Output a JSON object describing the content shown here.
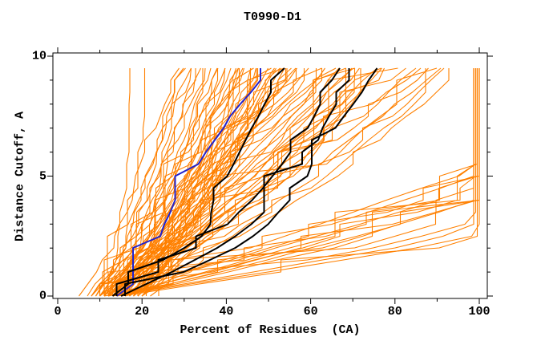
{
  "chart_data": {
    "type": "line",
    "title": "T0990-D1",
    "xlabel": "Percent of Residues  (CA)",
    "ylabel": "Distance Cutoff, A",
    "xlim": [
      0,
      100
    ],
    "ylim": [
      0,
      10
    ],
    "x_major_ticks": [
      0,
      20,
      40,
      60,
      80,
      100
    ],
    "x_minor_ticks": [
      10,
      30,
      50,
      70,
      90
    ],
    "y_major_ticks": [
      0,
      5,
      10
    ],
    "y_minor_ticks": [
      1,
      2,
      3,
      4,
      6,
      7,
      8,
      9
    ],
    "grid": "off",
    "legend": "none",
    "ticks_direction": "out",
    "frame": "box",
    "colors": {
      "model_orange": "#ff8000",
      "highlight_blue": "#2222cc",
      "reference_black": "#000000",
      "frame": "#000000",
      "background": "#ffffff",
      "text": "#000000"
    },
    "series": [
      {
        "name": "blue-highlight-model",
        "color": "#2222cc",
        "points": [
          [
            14,
            0
          ],
          [
            21,
            1
          ],
          [
            24,
            2
          ],
          [
            25,
            3
          ],
          [
            28,
            4
          ],
          [
            31,
            5
          ],
          [
            35,
            6
          ],
          [
            39,
            7
          ],
          [
            43,
            8
          ],
          [
            48,
            9
          ],
          [
            51,
            9.5
          ]
        ]
      },
      {
        "name": "black-reference-1",
        "color": "#000000",
        "points": [
          [
            13,
            0
          ],
          [
            20,
            1
          ],
          [
            30,
            2
          ],
          [
            36,
            2.7
          ],
          [
            37,
            4
          ],
          [
            40,
            5
          ],
          [
            43,
            6
          ],
          [
            46,
            7
          ],
          [
            49,
            8
          ],
          [
            52,
            9
          ],
          [
            54,
            9.5
          ]
        ]
      },
      {
        "name": "black-reference-2",
        "color": "#000000",
        "points": [
          [
            14,
            0
          ],
          [
            24,
            1
          ],
          [
            33,
            2
          ],
          [
            40,
            3
          ],
          [
            46,
            4
          ],
          [
            51,
            5
          ],
          [
            55,
            6
          ],
          [
            59,
            7
          ],
          [
            62,
            8
          ],
          [
            65,
            9
          ],
          [
            67,
            9.5
          ]
        ]
      },
      {
        "name": "black-reference-3",
        "color": "#000000",
        "points": [
          [
            15,
            0
          ],
          [
            27,
            1
          ],
          [
            38,
            2
          ],
          [
            46,
            3
          ],
          [
            52,
            4
          ],
          [
            56,
            5
          ],
          [
            60,
            6
          ],
          [
            63,
            7
          ],
          [
            66,
            8
          ],
          [
            69,
            9
          ],
          [
            71,
            9.5
          ]
        ]
      },
      {
        "name": "black-reference-4",
        "color": "#000000",
        "points": [
          [
            16,
            0
          ],
          [
            30,
            1
          ],
          [
            42,
            2
          ],
          [
            50,
            3
          ],
          [
            55,
            4
          ],
          [
            59,
            5
          ],
          [
            62,
            6
          ],
          [
            66,
            7
          ],
          [
            70,
            8
          ],
          [
            74,
            9
          ],
          [
            76,
            9.5
          ]
        ]
      }
    ],
    "orange_models": {
      "color": "#ff8000",
      "count": 90,
      "note": "Estimated control points per curve: x at distance cutoffs y = 0, 2, 5 and 9.5 A; x values above 100 mean the curve saturates at 100% and runs vertically along the right edge.",
      "control_y": [
        0,
        2,
        5,
        9.5
      ],
      "curves": [
        [
          11,
          14,
          16,
          17
        ],
        [
          12,
          16,
          19,
          21
        ],
        [
          5,
          13,
          19,
          28
        ],
        [
          7,
          15,
          21,
          29
        ],
        [
          8,
          16,
          21,
          30
        ],
        [
          8,
          17,
          22,
          31
        ],
        [
          9,
          17,
          23,
          32
        ],
        [
          9,
          18,
          24,
          33
        ],
        [
          10,
          18,
          25,
          34
        ],
        [
          10,
          19,
          25,
          35
        ],
        [
          11,
          19,
          26,
          36
        ],
        [
          11,
          20,
          27,
          37
        ],
        [
          12,
          20,
          28,
          38
        ],
        [
          12,
          21,
          28,
          39
        ],
        [
          13,
          21,
          29,
          40
        ],
        [
          13,
          22,
          30,
          41
        ],
        [
          14,
          22,
          30,
          42
        ],
        [
          14,
          23,
          31,
          43
        ],
        [
          15,
          23,
          32,
          44
        ],
        [
          15,
          24,
          33,
          45
        ],
        [
          16,
          24,
          33,
          46
        ],
        [
          16,
          25,
          34,
          47
        ],
        [
          17,
          25,
          35,
          48
        ],
        [
          17,
          26,
          35,
          49
        ],
        [
          18,
          26,
          36,
          50
        ],
        [
          18,
          27,
          37,
          51
        ],
        [
          19,
          27,
          37,
          52
        ],
        [
          19,
          28,
          38,
          53
        ],
        [
          20,
          28,
          39,
          54
        ],
        [
          20,
          29,
          39,
          55
        ],
        [
          10,
          20,
          30,
          38
        ],
        [
          11,
          21,
          31,
          40
        ],
        [
          12,
          22,
          32,
          42
        ],
        [
          13,
          23,
          33,
          44
        ],
        [
          14,
          24,
          34,
          46
        ],
        [
          15,
          25,
          35,
          48
        ],
        [
          16,
          26,
          36,
          50
        ],
        [
          17,
          27,
          37,
          52
        ],
        [
          18,
          28,
          38,
          54
        ],
        [
          19,
          29,
          39,
          55
        ],
        [
          8,
          18,
          28,
          56
        ],
        [
          9,
          19,
          30,
          58
        ],
        [
          10,
          20,
          32,
          60
        ],
        [
          11,
          21,
          34,
          62
        ],
        [
          12,
          22,
          36,
          64
        ],
        [
          13,
          23,
          38,
          66
        ],
        [
          14,
          24,
          40,
          68
        ],
        [
          15,
          25,
          42,
          70
        ],
        [
          16,
          26,
          44,
          72
        ],
        [
          17,
          27,
          46,
          74
        ],
        [
          18,
          28,
          48,
          76
        ],
        [
          19,
          29,
          50,
          78
        ],
        [
          10,
          22,
          35,
          57
        ],
        [
          11,
          23,
          37,
          59
        ],
        [
          12,
          24,
          39,
          61
        ],
        [
          13,
          25,
          41,
          63
        ],
        [
          14,
          26,
          43,
          65
        ],
        [
          15,
          27,
          45,
          67
        ],
        [
          16,
          28,
          47,
          69
        ],
        [
          17,
          29,
          49,
          71
        ],
        [
          18,
          30,
          51,
          73
        ],
        [
          19,
          31,
          53,
          75
        ],
        [
          20,
          32,
          55,
          77
        ],
        [
          21,
          33,
          56,
          78
        ],
        [
          10,
          24,
          44,
          80
        ],
        [
          12,
          26,
          48,
          83
        ],
        [
          14,
          28,
          52,
          86
        ],
        [
          16,
          30,
          56,
          88
        ],
        [
          18,
          32,
          60,
          90
        ],
        [
          20,
          34,
          62,
          92
        ],
        [
          22,
          36,
          64,
          94
        ],
        [
          24,
          38,
          66,
          96
        ],
        [
          13,
          30,
          55,
          85
        ],
        [
          17,
          34,
          58,
          91
        ],
        [
          10,
          45,
          95,
          140
        ],
        [
          11,
          48,
          100,
          150
        ],
        [
          12,
          50,
          105,
          160
        ],
        [
          13,
          52,
          110,
          170
        ],
        [
          14,
          55,
          115,
          180
        ],
        [
          15,
          58,
          120,
          190
        ],
        [
          16,
          60,
          125,
          200
        ],
        [
          12,
          55,
          108,
          165
        ],
        [
          13,
          58,
          112,
          175
        ],
        [
          14,
          62,
          118,
          185
        ],
        [
          15,
          65,
          122,
          195
        ],
        [
          11,
          70,
          130,
          210
        ],
        [
          12,
          75,
          140,
          230
        ],
        [
          13,
          80,
          150,
          250
        ],
        [
          14,
          85,
          160,
          280
        ],
        [
          15,
          90,
          170,
          300
        ]
      ]
    }
  }
}
